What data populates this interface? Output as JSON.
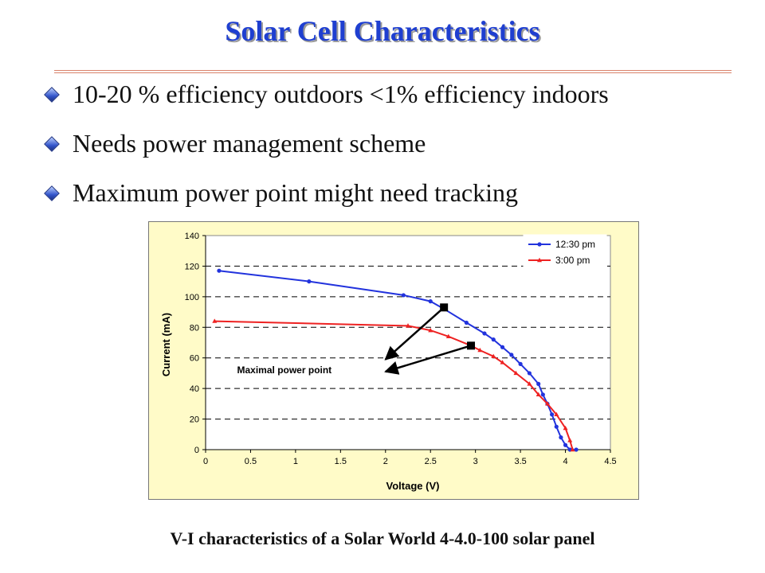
{
  "title": "Solar Cell Characteristics",
  "bullets": [
    "10-20 % efficiency outdoors  <1% efficiency indoors",
    "Needs power management scheme",
    "Maximum power point might need tracking"
  ],
  "caption": "V-I characteristics of a Solar World 4-4.0-100 solar panel",
  "colors": {
    "title": "#1f3fd0",
    "series1": "#2233dd",
    "series2": "#ee2222",
    "chart_bg": "#fffbc8"
  },
  "chart_data": {
    "type": "line",
    "title": "",
    "xlabel": "Voltage (V)",
    "ylabel": "Current (mA)",
    "xlim": [
      0,
      4.5
    ],
    "ylim": [
      0,
      140
    ],
    "xticks": [
      "0",
      "0.5",
      "1",
      "1.5",
      "2",
      "2.5",
      "3",
      "3.5",
      "4",
      "4.5"
    ],
    "yticks": [
      "0",
      "20",
      "40",
      "60",
      "80",
      "100",
      "120",
      "140"
    ],
    "grid": "horizontal dashed",
    "legend_position": "top-right",
    "series": [
      {
        "name": "12:30 pm",
        "color": "#2233dd",
        "points": [
          [
            0.15,
            117
          ],
          [
            1.15,
            110
          ],
          [
            2.2,
            101
          ],
          [
            2.5,
            97
          ],
          [
            2.65,
            92
          ],
          [
            2.9,
            83
          ],
          [
            3.1,
            76
          ],
          [
            3.2,
            72
          ],
          [
            3.3,
            67
          ],
          [
            3.4,
            62
          ],
          [
            3.5,
            56
          ],
          [
            3.6,
            50
          ],
          [
            3.7,
            43
          ],
          [
            3.75,
            36
          ],
          [
            3.8,
            30
          ],
          [
            3.85,
            23
          ],
          [
            3.9,
            15
          ],
          [
            3.95,
            8
          ],
          [
            4.0,
            3
          ],
          [
            4.05,
            0
          ],
          [
            4.12,
            0
          ]
        ]
      },
      {
        "name": "3:00 pm",
        "color": "#ee2222",
        "points": [
          [
            0.1,
            84
          ],
          [
            2.25,
            81
          ],
          [
            2.5,
            78
          ],
          [
            2.7,
            74
          ],
          [
            2.95,
            68
          ],
          [
            3.05,
            65
          ],
          [
            3.2,
            61
          ],
          [
            3.3,
            57
          ],
          [
            3.45,
            50
          ],
          [
            3.6,
            43
          ],
          [
            3.7,
            36
          ],
          [
            3.8,
            30
          ],
          [
            3.9,
            23
          ],
          [
            4.0,
            14
          ],
          [
            4.05,
            6
          ],
          [
            4.08,
            0
          ]
        ]
      }
    ],
    "annotations": [
      {
        "text": "Maximal power point",
        "points": [
          [
            2.65,
            93
          ],
          [
            2.95,
            68
          ]
        ],
        "arrow_targets": [
          [
            2.0,
            59
          ],
          [
            2.0,
            51
          ]
        ]
      }
    ]
  }
}
